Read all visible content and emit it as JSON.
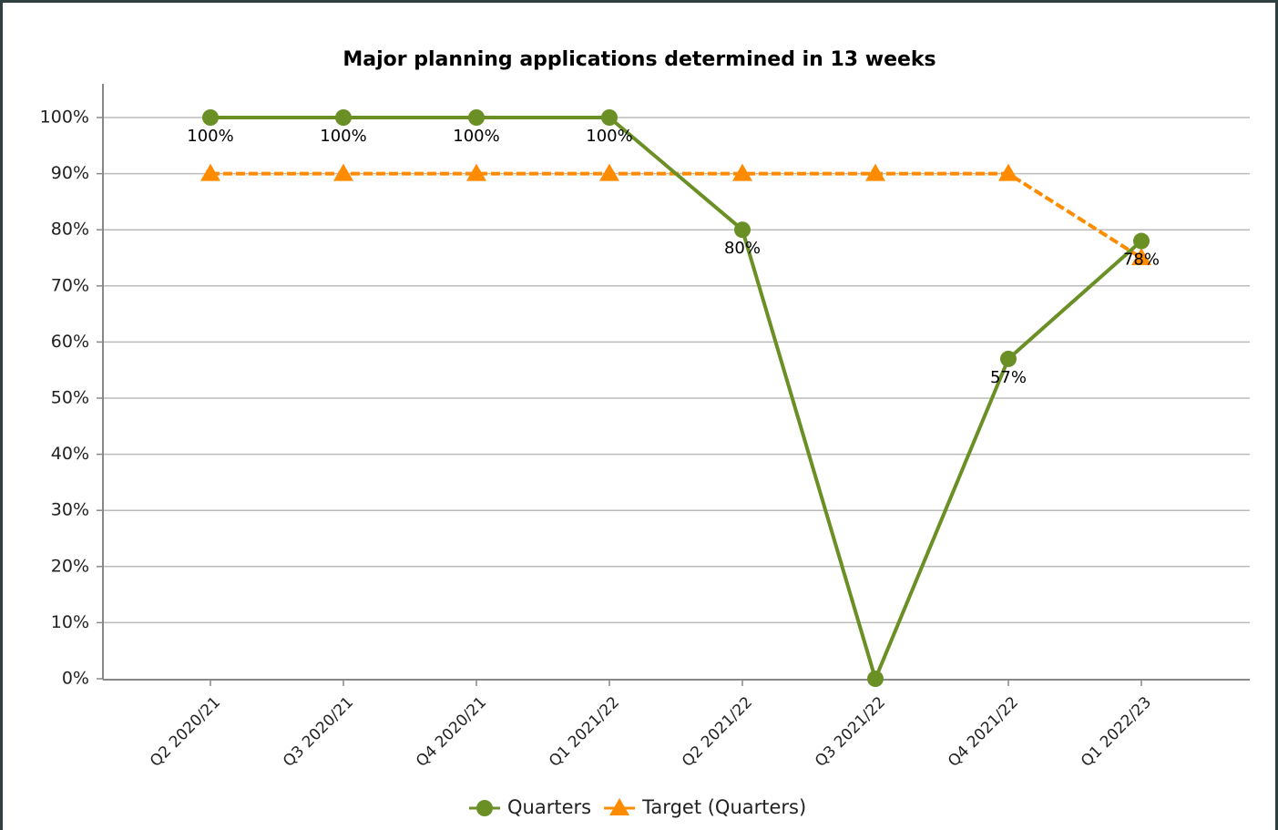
{
  "chart_data": {
    "type": "line",
    "title": "Major planning applications determined in 13 weeks",
    "categories": [
      "Q2 2020/21",
      "Q3 2020/21",
      "Q4 2020/21",
      "Q1 2021/22",
      "Q2 2021/22",
      "Q3 2021/22",
      "Q4 2021/22",
      "Q1 2022/23"
    ],
    "series": [
      {
        "name": "Quarters",
        "color": "#6a8f25",
        "marker": "circle",
        "dash": false,
        "values": [
          100,
          100,
          100,
          100,
          80,
          0,
          57,
          78
        ],
        "value_labels": [
          "100%",
          "100%",
          "100%",
          "100%",
          "80%",
          null,
          "57%",
          "78%"
        ]
      },
      {
        "name": "Target (Quarters)",
        "color": "#ff8c00",
        "marker": "triangle",
        "dash": true,
        "values": [
          90,
          90,
          90,
          90,
          90,
          90,
          90,
          75
        ]
      }
    ],
    "ylim": [
      0,
      100
    ],
    "yticks": [
      {
        "value": 0,
        "label": "0%"
      },
      {
        "value": 10,
        "label": "10%"
      },
      {
        "value": 20,
        "label": "20%"
      },
      {
        "value": 30,
        "label": "30%"
      },
      {
        "value": 40,
        "label": "40%"
      },
      {
        "value": 50,
        "label": "50%"
      },
      {
        "value": 60,
        "label": "60%"
      },
      {
        "value": 70,
        "label": "70%"
      },
      {
        "value": 80,
        "label": "80%"
      },
      {
        "value": 90,
        "label": "90%"
      },
      {
        "value": 100,
        "label": "100%"
      }
    ],
    "grid": true,
    "legend": "bottom"
  }
}
